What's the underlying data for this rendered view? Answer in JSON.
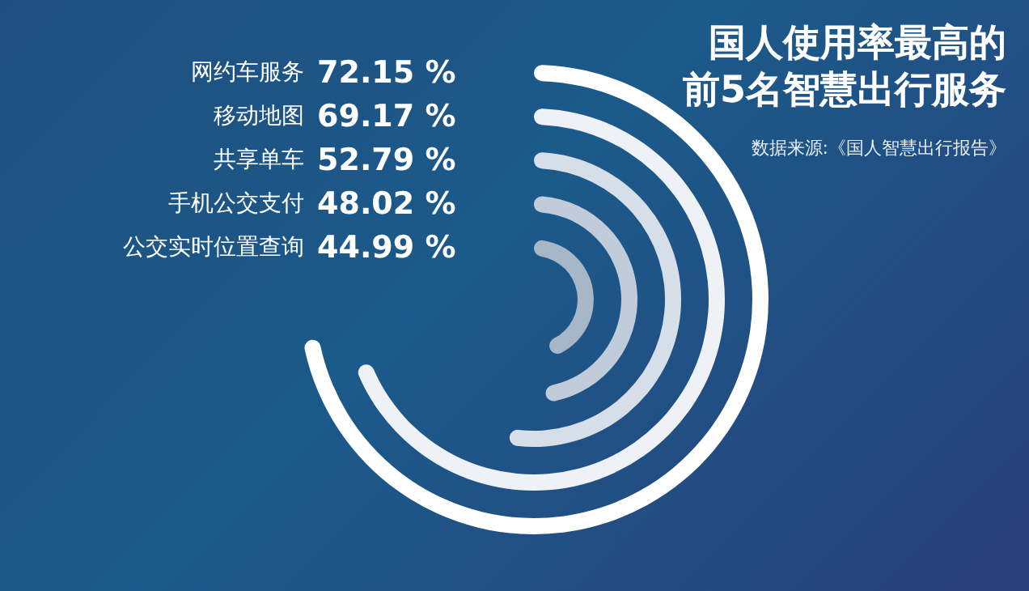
{
  "chart_data": {
    "type": "other",
    "title": "国人使用率最高的前5名智慧出行服务",
    "annotations": [
      "数据来源:《国人智慧出行报告》"
    ],
    "categories": [
      "网约车服务",
      "移动地图",
      "共享单车",
      "手机公交支付",
      "公交实时位置查询"
    ],
    "values": [
      72.15,
      69.17,
      52.79,
      48.02,
      44.99
    ],
    "value_labels": [
      "72.15 %",
      "69.17 %",
      "52.79 %",
      "48.02 %",
      "44.99 %"
    ],
    "colors": [
      "#ffffff",
      "#eef2f6",
      "#d6dee8",
      "#c0ccd9",
      "#a8b7c8"
    ]
  }
}
